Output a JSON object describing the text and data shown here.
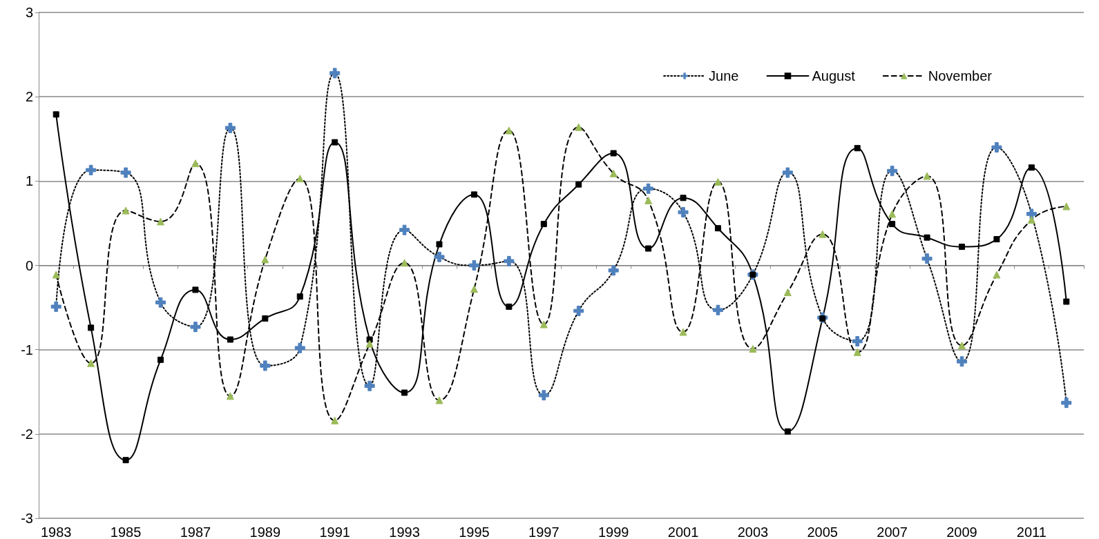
{
  "chart_data": {
    "type": "line",
    "categories": [
      "1983",
      null,
      "1985",
      null,
      "1987",
      null,
      "1989",
      null,
      "1991",
      null,
      "1993",
      null,
      "1995",
      null,
      "1997",
      null,
      "1999",
      null,
      "2001",
      null,
      "2003",
      null,
      "2005",
      null,
      "2007",
      null,
      "2009",
      null,
      "2011",
      null
    ],
    "series": [
      {
        "name": "June",
        "color": "#4f81bd",
        "marker": "cross",
        "line_style": "dotted",
        "values": [
          -0.49,
          1.13,
          1.1,
          -0.44,
          -0.73,
          1.63,
          -1.19,
          -0.98,
          2.28,
          -1.43,
          0.42,
          0.1,
          0.0,
          0.05,
          -1.54,
          -0.54,
          -0.06,
          0.91,
          0.63,
          -0.53,
          -0.11,
          1.1,
          -0.62,
          -0.9,
          1.12,
          0.08,
          -1.14,
          1.4,
          0.61,
          -1.63
        ]
      },
      {
        "name": "August",
        "color": "#000000",
        "marker": "square",
        "line_style": "solid",
        "values": [
          1.79,
          -0.74,
          -2.31,
          -1.12,
          -0.29,
          -0.88,
          -0.63,
          -0.37,
          1.46,
          -0.88,
          -1.51,
          0.25,
          0.84,
          -0.49,
          0.49,
          0.96,
          1.33,
          0.2,
          0.8,
          0.44,
          -0.11,
          -1.97,
          -0.63,
          1.39,
          0.49,
          0.33,
          0.22,
          0.31,
          1.16,
          -0.43
        ]
      },
      {
        "name": "November",
        "color": "#9bbb59",
        "marker": "triangle",
        "line_style": "dashed",
        "values": [
          -0.11,
          -1.16,
          0.65,
          0.52,
          1.21,
          -1.55,
          0.07,
          1.03,
          -1.84,
          -0.93,
          0.03,
          -1.6,
          -0.28,
          1.6,
          -0.7,
          1.64,
          1.09,
          0.77,
          -0.79,
          0.99,
          -0.99,
          -0.32,
          0.37,
          -1.03,
          0.61,
          1.06,
          -0.95,
          -0.11,
          0.54,
          0.7
        ]
      }
    ],
    "ylim": [
      -3,
      3
    ],
    "yticks": [
      -3,
      -2,
      -1,
      0,
      1,
      2,
      3
    ],
    "grid": "y",
    "legend": "top right"
  }
}
